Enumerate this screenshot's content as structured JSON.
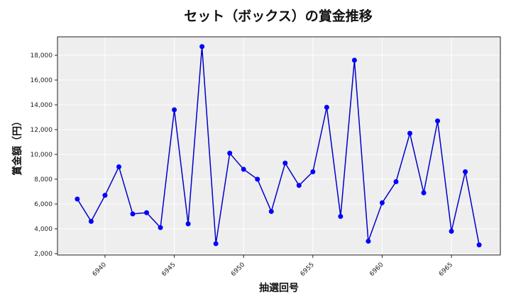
{
  "chart_data": {
    "type": "line",
    "title": "セット（ボックス）の賞金推移",
    "xlabel": "抽選回号",
    "ylabel": "賞金額（円）",
    "x": [
      6938,
      6939,
      6940,
      6941,
      6942,
      6943,
      6944,
      6945,
      6946,
      6947,
      6948,
      6949,
      6950,
      6951,
      6952,
      6953,
      6954,
      6955,
      6956,
      6957,
      6958,
      6959,
      6960,
      6961,
      6962,
      6963,
      6964,
      6965,
      6966,
      6967
    ],
    "series": [
      {
        "name": "セット（ボックス）",
        "color": "#0000cc",
        "marker_color": "#0000ff",
        "values": [
          6400,
          4600,
          6700,
          9000,
          5200,
          5300,
          4100,
          13600,
          4400,
          18700,
          2800,
          10100,
          8800,
          8000,
          5400,
          9300,
          7500,
          8600,
          13800,
          5000,
          17600,
          3000,
          6100,
          7800,
          11700,
          6900,
          12700,
          3800,
          8600,
          2700
        ]
      }
    ],
    "xticks": [
      6940,
      6945,
      6950,
      6955,
      6960,
      6965
    ],
    "xtick_labels": [
      "6940",
      "6945",
      "6950",
      "6955",
      "6960",
      "6965"
    ],
    "yticks": [
      2000,
      4000,
      6000,
      8000,
      10000,
      12000,
      14000,
      16000,
      18000
    ],
    "ytick_labels": [
      "2,000",
      "4,000",
      "6,000",
      "8,000",
      "10,000",
      "12,000",
      "14,000",
      "16,000",
      "18,000"
    ],
    "xlim": [
      6936.57,
      6968.53
    ],
    "ylim": [
      1886,
      19486
    ],
    "grid": true,
    "legend": null,
    "plot_background": "#eeeeee",
    "grid_color": "#ffffff"
  }
}
